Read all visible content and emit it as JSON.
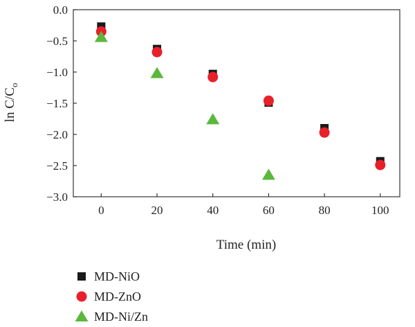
{
  "chart_data": {
    "type": "scatter",
    "title": "",
    "xlabel": "Time (min)",
    "ylabel_main": "ln C/C",
    "ylabel_sub": "o",
    "xlim": [
      -10,
      107
    ],
    "ylim": [
      -3.0,
      0.0
    ],
    "x_ticks": [
      0,
      20,
      40,
      60,
      80,
      100
    ],
    "x_tick_labels": [
      "0",
      "20",
      "40",
      "60",
      "80",
      "100"
    ],
    "y_ticks": [
      0.0,
      -0.5,
      -1.0,
      -1.5,
      -2.0,
      -2.5,
      -3.0
    ],
    "y_tick_labels": [
      "0.0",
      "−0.5",
      "−1.0",
      "−1.5",
      "−2.0",
      "−2.5",
      "−3.0"
    ],
    "grid": false,
    "legend_position": "bottom-left, below plot",
    "series": [
      {
        "name": "MD-NiO",
        "marker": "square",
        "color": "#1a1a1a",
        "x": [
          0,
          20,
          40,
          60,
          80,
          100
        ],
        "y": [
          -0.27,
          -0.63,
          -1.03,
          -1.49,
          -1.9,
          -2.43
        ]
      },
      {
        "name": "MD-ZnO",
        "marker": "circle",
        "color": "#e8202a",
        "x": [
          0,
          20,
          40,
          60,
          80,
          100
        ],
        "y": [
          -0.35,
          -0.68,
          -1.08,
          -1.46,
          -1.97,
          -2.49
        ]
      },
      {
        "name": "MD-Ni/Zn",
        "marker": "triangle",
        "color": "#5bb83c",
        "x": [
          0,
          20,
          40,
          60
        ],
        "y": [
          -0.44,
          -1.02,
          -1.76,
          -2.65
        ]
      }
    ]
  }
}
